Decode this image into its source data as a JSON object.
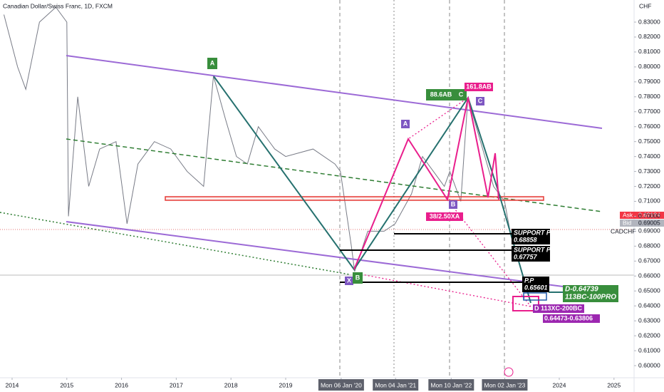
{
  "chart_data": {
    "type": "line",
    "title": "Canadian Dollar/Swiss Franc, 1D, FXCM",
    "currency": "CHF",
    "symbol": "CADCHF",
    "ask": {
      "label": "Ask",
      "value": "0.69184"
    },
    "bid": {
      "label": "Bid",
      "value": "0.69005"
    },
    "color": "#787b86",
    "x": [
      2013.85,
      2014.1,
      2014.25,
      2014.5,
      2014.8,
      2015.0,
      2015.03,
      2015.2,
      2015.4,
      2015.6,
      2015.9,
      2016.1,
      2016.3,
      2016.6,
      2016.9,
      2017.2,
      2017.5,
      2017.68,
      2017.9,
      2018.1,
      2018.3,
      2018.5,
      2018.8,
      2019.0,
      2019.5,
      2019.9,
      2020.0,
      2020.2,
      2020.26,
      2020.5,
      2020.8,
      2021.0,
      2021.3,
      2021.5,
      2021.7,
      2021.9,
      2022.0,
      2022.2,
      2022.33,
      2022.6,
      2022.8,
      2023.0,
      2023.1,
      2023.15,
      2023.3
    ],
    "values": [
      0.835,
      0.8,
      0.785,
      0.83,
      0.84,
      0.83,
      0.7,
      0.78,
      0.72,
      0.745,
      0.75,
      0.695,
      0.735,
      0.75,
      0.745,
      0.73,
      0.72,
      0.794,
      0.765,
      0.74,
      0.735,
      0.76,
      0.745,
      0.74,
      0.745,
      0.735,
      0.73,
      0.68,
      0.663,
      0.69,
      0.69,
      0.695,
      0.715,
      0.74,
      0.73,
      0.72,
      0.73,
      0.71,
      0.779,
      0.745,
      0.72,
      0.71,
      0.69,
      0.685,
      0.69
    ],
    "xlim": [
      2013.779,
      2025.367
    ],
    "ylim": [
      0.5919,
      0.8448
    ],
    "xticks": [
      2014,
      2015,
      2016,
      2017,
      2018,
      2019,
      {
        "value": 2020.014,
        "label": "Mon 06 Jan '20"
      },
      {
        "value": 2021.008,
        "label": "Mon 04 Jan '21"
      },
      {
        "value": 2022.025,
        "label": "Mon 10 Jan '22"
      },
      {
        "value": 2023.003,
        "label": "Mon 02 Jan '23"
      },
      2024,
      2025
    ],
    "yticks": [
      {
        "value": 0.83,
        "label": "0.83000"
      },
      {
        "value": 0.82,
        "label": "0.82000"
      },
      {
        "value": 0.81,
        "label": "0.81000"
      },
      {
        "value": 0.8,
        "label": "0.80000"
      },
      {
        "value": 0.79,
        "label": "0.79000"
      },
      {
        "value": 0.78,
        "label": "0.78000"
      },
      {
        "value": 0.77,
        "label": "0.77000"
      },
      {
        "value": 0.76,
        "label": "0.76000"
      },
      {
        "value": 0.75,
        "label": "0.75000"
      },
      {
        "value": 0.74,
        "label": "0.74000"
      },
      {
        "value": 0.73,
        "label": "0.73000"
      },
      {
        "value": 0.72,
        "label": "0.72000"
      },
      {
        "value": 0.71,
        "label": "0.71000"
      },
      {
        "value": 0.7,
        "label": "0.70000"
      },
      {
        "value": 0.69,
        "label": "0.69000"
      },
      {
        "value": 0.68,
        "label": "0.68000"
      },
      {
        "value": 0.67,
        "label": "0.67000"
      },
      {
        "value": 0.66,
        "label": "0.66000"
      },
      {
        "value": 0.65,
        "label": "0.65000"
      },
      {
        "value": 0.64,
        "label": "0.64000"
      },
      {
        "value": 0.63,
        "label": "0.63000"
      },
      {
        "value": 0.62,
        "label": "0.62000"
      },
      {
        "value": 0.61,
        "label": "0.61000"
      },
      {
        "value": 0.6,
        "label": "0.60000"
      }
    ],
    "annotations": [
      "A",
      "88.6AB",
      "C",
      "161.8AB",
      "C",
      "A",
      "B",
      "38/2.50XA",
      "X",
      "B",
      "SUPPORT P.P",
      "0.68858",
      "SUPPORT P.P",
      "0.67757",
      "P.P",
      "0.65601",
      "D-0.64739",
      "113BC-100PRO",
      "D 113XC-200BC",
      "0.64473-0.63806"
    ]
  }
}
